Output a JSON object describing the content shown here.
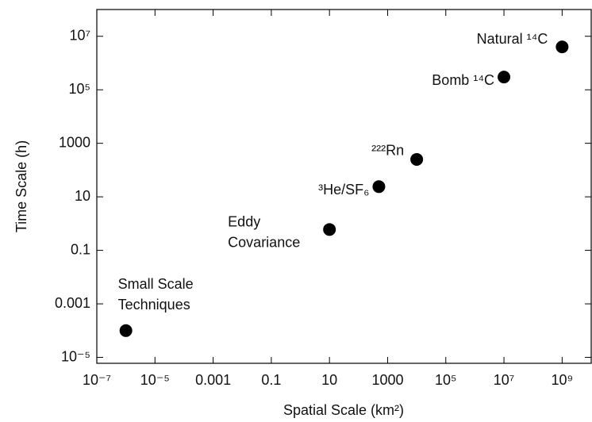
{
  "chart_data": {
    "type": "scatter",
    "x_label": "Spatial Scale (km²)",
    "y_label": "Time Scale (h)",
    "log_x": true,
    "log_y": true,
    "color": "#000000",
    "xlim": [
      1e-07,
      10000000000.0
    ],
    "ylim": [
      6e-06,
      100000000.0
    ],
    "xticks": [
      {
        "value": 1e-07,
        "label": "10⁻⁷"
      },
      {
        "value": 1e-05,
        "label": "10⁻⁵"
      },
      0.001,
      0.1,
      10,
      1000,
      {
        "value": 100000,
        "label": "10⁵"
      },
      {
        "value": 10000000,
        "label": "10⁷"
      },
      {
        "value": 1000000000,
        "label": "10⁹"
      }
    ],
    "yticks": [
      {
        "value": 1e-05,
        "label": "10⁻⁵"
      },
      0.001,
      0.1,
      10,
      1000,
      {
        "value": 100000,
        "label": "10⁵"
      },
      {
        "value": 10000000,
        "label": "10⁷"
      }
    ],
    "series": [
      {
        "names": [
          "Small Scale\nTechniques",
          "Eddy\nCovariance",
          "³He/SF₆",
          "²²²Rn",
          "Bomb ¹⁴C",
          "Natural ¹⁴C"
        ],
        "x": [
          1e-06,
          10,
          500,
          10000,
          10000000,
          1000000000
        ],
        "values": [
          0.0001,
          0.6,
          24,
          250,
          300000,
          4000000
        ]
      }
    ]
  }
}
